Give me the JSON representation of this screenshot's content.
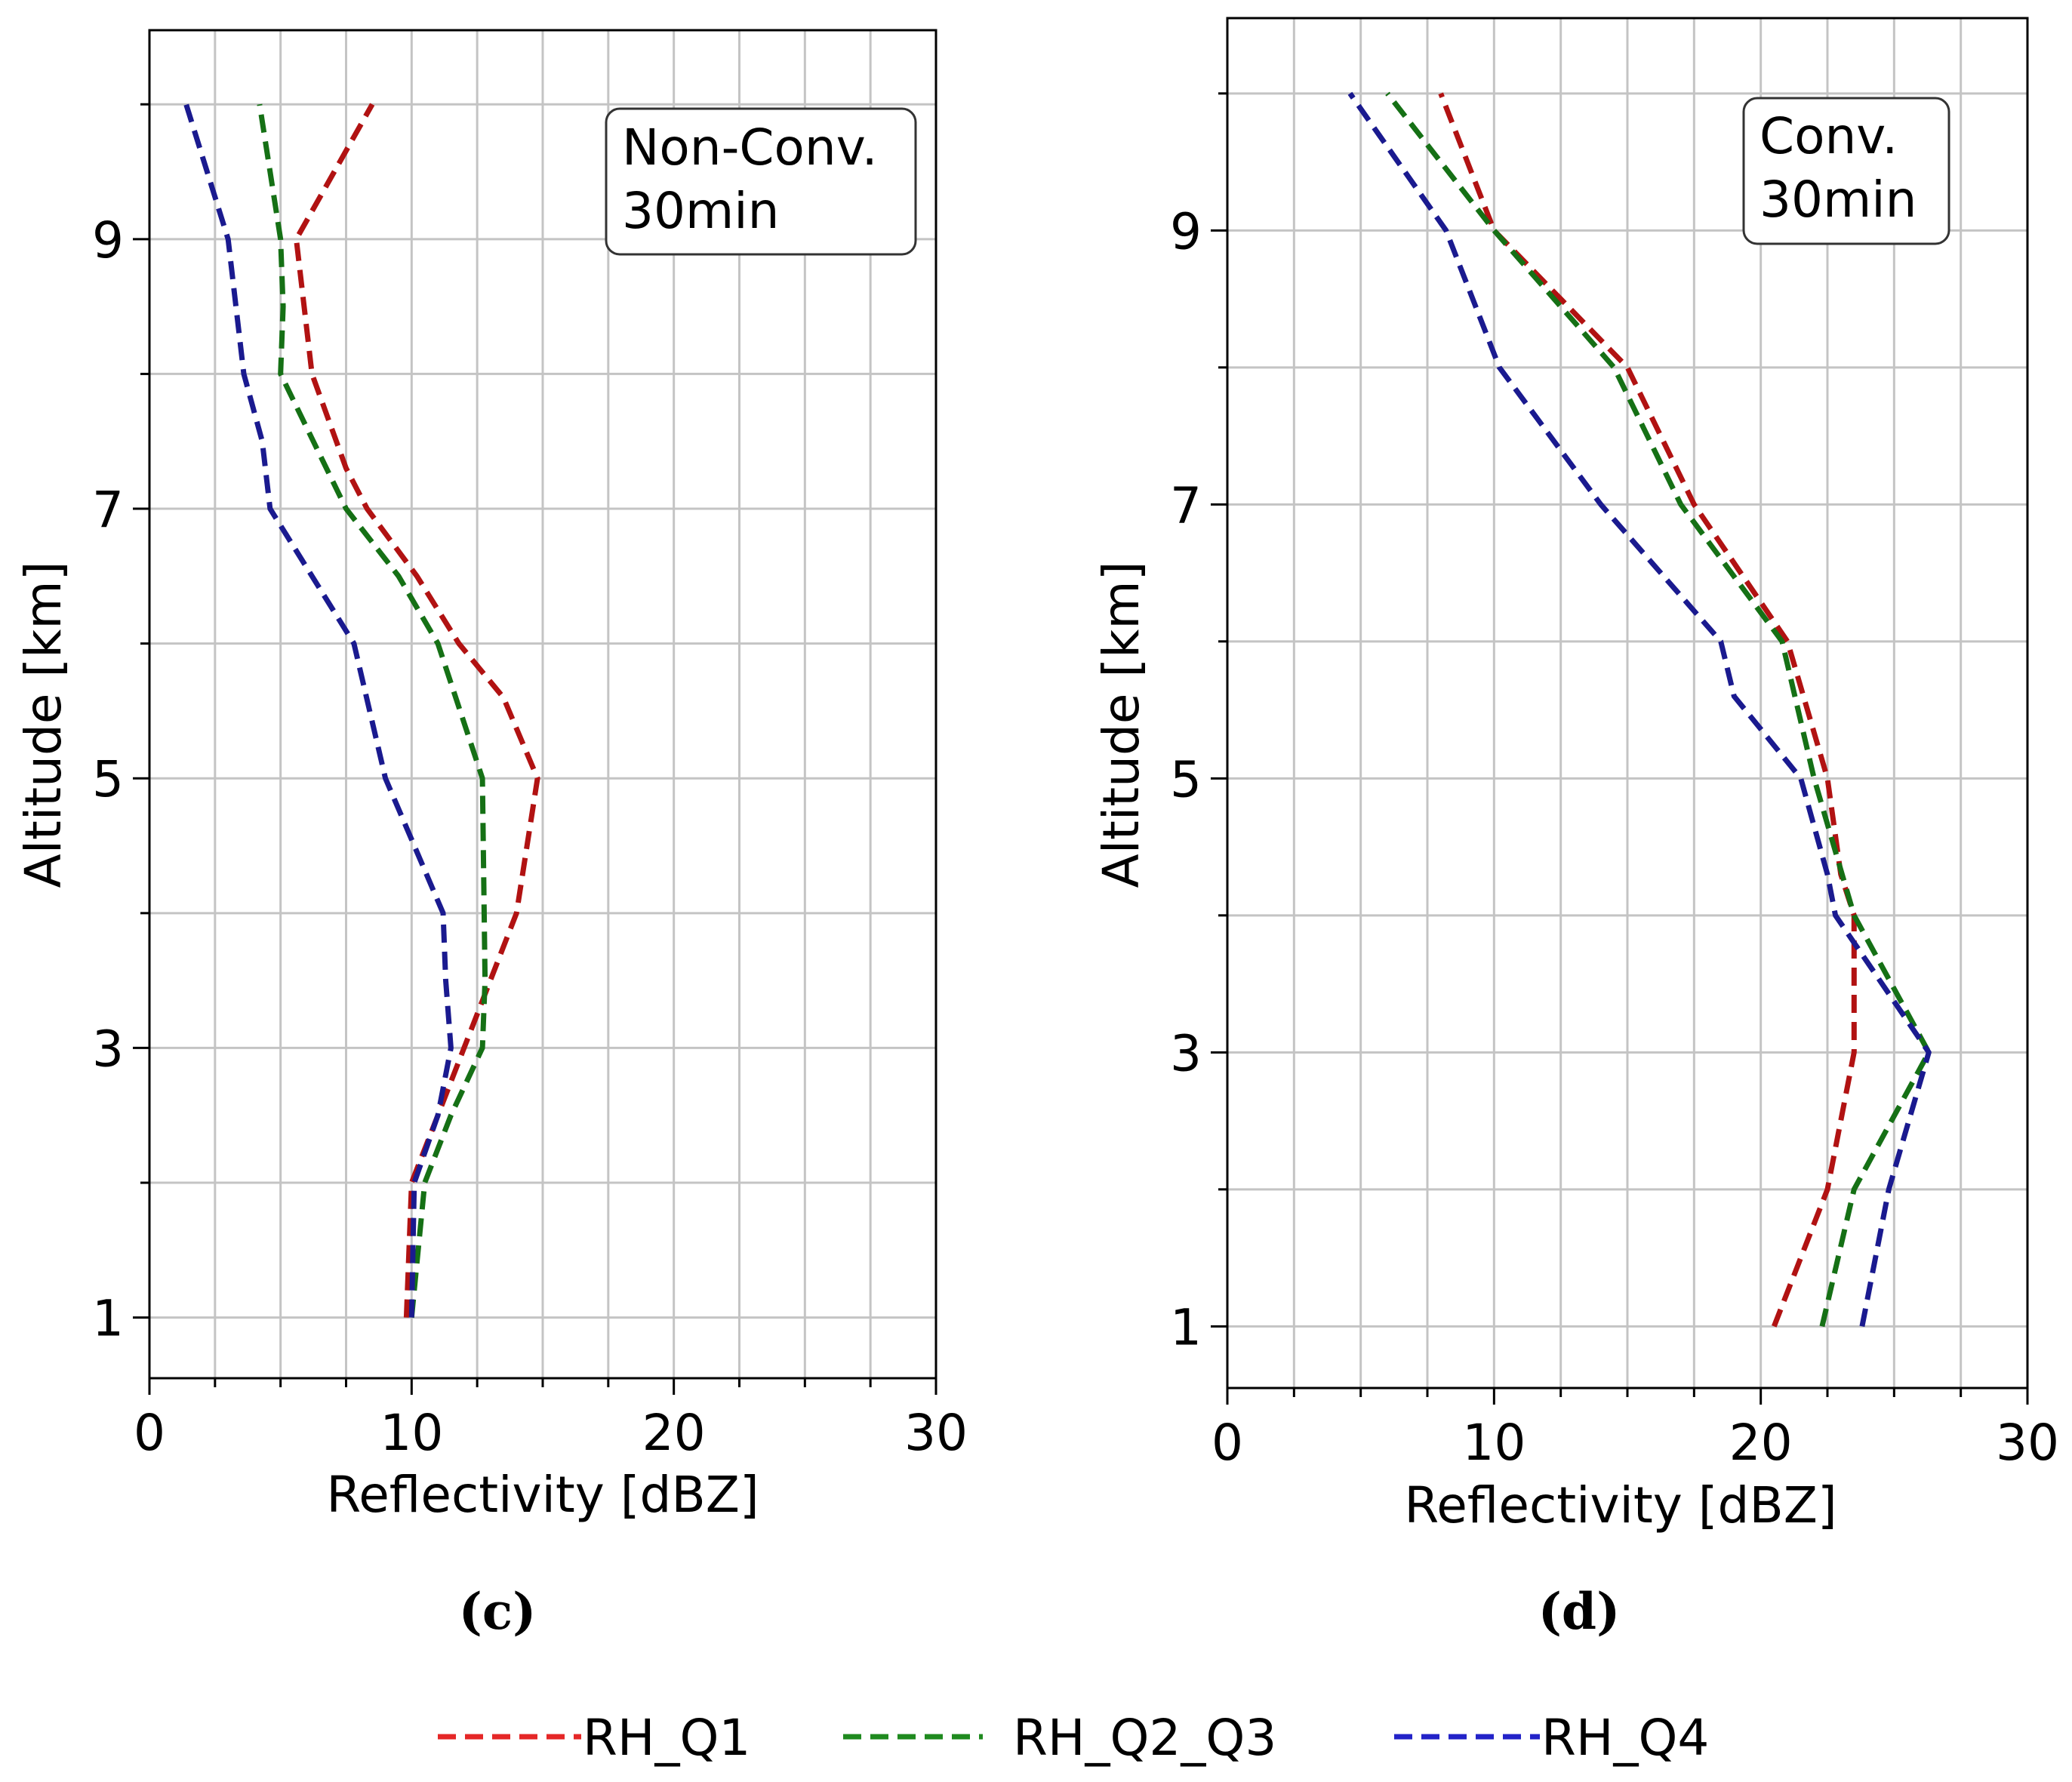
{
  "chart_data": [
    {
      "type": "line",
      "panel_label": "(c)",
      "annotation": [
        "Non-Conv.",
        "30min"
      ],
      "xlabel": "Reflectivity [dBZ]",
      "ylabel": "Altitude [km]",
      "xlim": [
        0,
        30
      ],
      "ylim": [
        0.55,
        10.55
      ],
      "xticks": [
        "0",
        "10",
        "20",
        "30"
      ],
      "xminor": [
        2.5,
        5,
        7.5,
        12.5,
        15,
        17.5,
        22.5,
        25,
        27.5
      ],
      "yticks": [
        "1",
        "3",
        "5",
        "7",
        "9"
      ],
      "yminor": [
        2,
        4,
        6,
        8,
        10
      ],
      "grid": true,
      "series": [
        {
          "name": "RH_Q1",
          "color": "#b11212",
          "x": [
            9.8,
            10.0,
            11.0,
            12.0,
            14.0,
            14.8,
            13.5,
            11.8,
            10.2,
            8.3,
            7.5,
            6.2,
            5.9,
            5.6,
            8.5
          ],
          "y": [
            1,
            2,
            2.5,
            3,
            4,
            5,
            5.6,
            6,
            6.5,
            7,
            7.3,
            8,
            8.5,
            9,
            10
          ]
        },
        {
          "name": "RH_Q2_Q3",
          "color": "#157015",
          "x": [
            10.0,
            10.5,
            11.5,
            12.7,
            12.8,
            12.7,
            11.0,
            9.5,
            7.5,
            5.0,
            5.1,
            5.0,
            4.2
          ],
          "y": [
            1,
            2,
            2.5,
            3,
            3.5,
            5,
            6,
            6.5,
            7,
            8,
            8.5,
            9,
            10
          ]
        },
        {
          "name": "RH_Q4",
          "color": "#1a1a8f",
          "x": [
            10.0,
            10.1,
            11.0,
            11.5,
            11.3,
            11.2,
            9.0,
            7.8,
            4.6,
            4.3,
            3.6,
            3.0,
            1.4
          ],
          "y": [
            1,
            2,
            2.5,
            3,
            3.5,
            4,
            5,
            6,
            7,
            7.5,
            8,
            9,
            10
          ]
        }
      ]
    },
    {
      "type": "line",
      "panel_label": "(d)",
      "annotation": [
        "Conv.",
        "30min"
      ],
      "xlabel": "Reflectivity [dBZ]",
      "ylabel": "Altitude [km]",
      "xlim": [
        0,
        30
      ],
      "ylim": [
        0.55,
        10.55
      ],
      "xticks": [
        "0",
        "10",
        "20",
        "30"
      ],
      "xminor": [
        2.5,
        5,
        7.5,
        12.5,
        15,
        17.5,
        22.5,
        25,
        27.5
      ],
      "yticks": [
        "1",
        "3",
        "5",
        "7",
        "9"
      ],
      "yminor": [
        2,
        4,
        6,
        8,
        10
      ],
      "grid": true,
      "series": [
        {
          "name": "RH_Q1",
          "color": "#b11212",
          "x": [
            20.5,
            22.5,
            23.5,
            23.5,
            23.0,
            22.5,
            21.0,
            17.5,
            15.0,
            10.0,
            8.0
          ],
          "y": [
            1,
            2,
            3,
            4,
            4.3,
            5,
            6,
            7,
            8,
            9,
            10
          ]
        },
        {
          "name": "RH_Q2_Q3",
          "color": "#157015",
          "x": [
            22.3,
            23.5,
            26.3,
            23.5,
            22.0,
            20.8,
            17.0,
            14.5,
            10.0,
            6.0
          ],
          "y": [
            1,
            2,
            3,
            4,
            5,
            6,
            7,
            8,
            9,
            10
          ]
        },
        {
          "name": "RH_Q4",
          "color": "#1a1a8f",
          "x": [
            23.8,
            24.8,
            26.3,
            22.8,
            22.5,
            21.5,
            19.0,
            18.5,
            14.0,
            10.2,
            8.2,
            4.6
          ],
          "y": [
            1,
            2,
            3,
            4,
            4.3,
            5,
            5.6,
            6,
            7,
            8,
            9,
            10
          ]
        }
      ]
    }
  ],
  "legend": [
    {
      "name": "RH_Q1",
      "color": "#e52727"
    },
    {
      "name": "RH_Q2_Q3",
      "color": "#1f8a1f"
    },
    {
      "name": "RH_Q4",
      "color": "#2323c8"
    }
  ]
}
